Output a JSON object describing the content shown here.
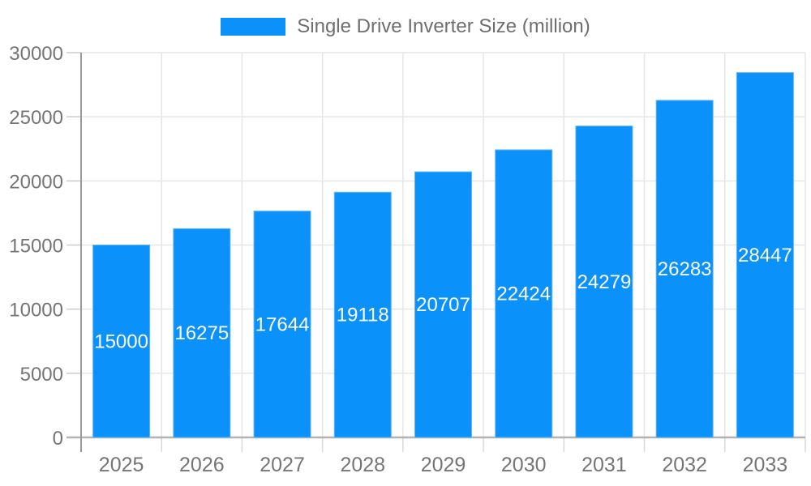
{
  "chart_data": {
    "type": "bar",
    "title": "",
    "legend_label": "Single Drive Inverter Size (million)",
    "categories": [
      "2025",
      "2026",
      "2027",
      "2028",
      "2029",
      "2030",
      "2031",
      "2032",
      "2033"
    ],
    "values": [
      15000,
      16275,
      17644,
      19118,
      20707,
      22424,
      24279,
      26283,
      28447
    ],
    "xlabel": "",
    "ylabel": "",
    "ylim": [
      0,
      30000
    ],
    "yticks": [
      0,
      5000,
      10000,
      15000,
      20000,
      25000,
      30000
    ],
    "grid": true,
    "legend_position": "top-center",
    "colors": {
      "bar_fill": "#0a91fa",
      "bar_edge": "#64b5f6",
      "data_label": "#ffffff",
      "axis_text": "#757575",
      "legend_text": "#6e6e6e",
      "grid_line": "#e6e6e6",
      "axis_line": "#999999",
      "baseline": "#b3b3b3",
      "tick": "#cccccc",
      "background": "#ffffff"
    }
  }
}
